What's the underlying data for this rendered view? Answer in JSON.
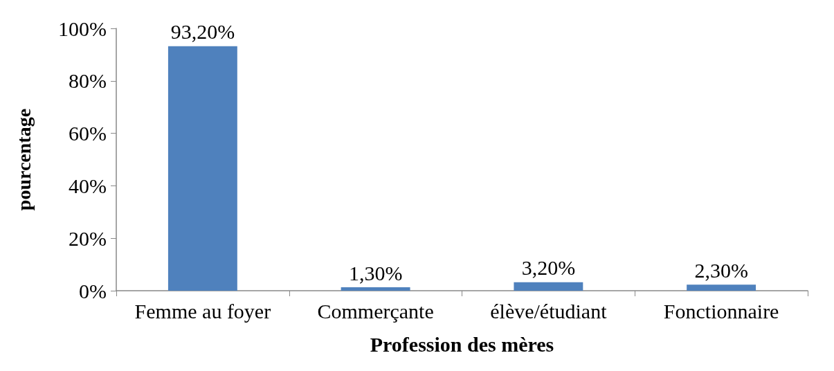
{
  "chart_data": {
    "type": "bar",
    "xlabel": "Profession des mères",
    "ylabel": "pourcentage",
    "categories": [
      "Femme au foyer",
      "Commerçante",
      "élève/étudiant",
      "Fonctionnaire"
    ],
    "values": [
      93.2,
      1.3,
      3.2,
      2.3
    ],
    "color": "#4f81bd",
    "value_labels": [
      "93,20%",
      "1,30%",
      "3,20%",
      "2,30%"
    ],
    "ylim": [
      0,
      100
    ],
    "yticks": [
      {
        "value": 0,
        "label": "0%"
      },
      {
        "value": 20,
        "label": "20%"
      },
      {
        "value": 40,
        "label": "40%"
      },
      {
        "value": 60,
        "label": "60%"
      },
      {
        "value": 80,
        "label": "80%"
      },
      {
        "value": 100,
        "label": "100%"
      }
    ],
    "grid": false
  }
}
